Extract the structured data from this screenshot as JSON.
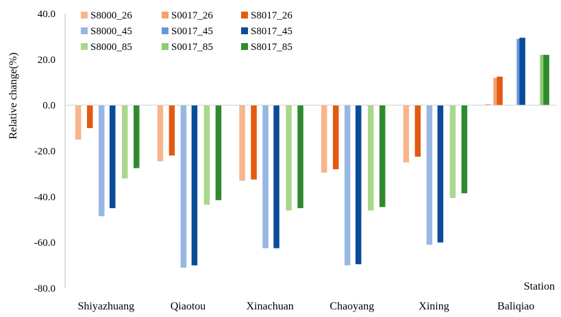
{
  "chart_data": {
    "type": "bar",
    "title": "",
    "xlabel": "Station",
    "ylabel": "Relative change(%)",
    "ylim": [
      -80,
      40
    ],
    "yticks": [
      40,
      20,
      0,
      -20,
      -40,
      -60,
      -80
    ],
    "ytick_labels": [
      "40.0",
      "20.0",
      "0.0",
      "-20.0",
      "-40.0",
      "-60.0",
      "-80.0"
    ],
    "grid": false,
    "legend_position": "top-left",
    "categories": [
      "Shiyazhuang",
      "Qiaotou",
      "Xinachuan",
      "Chaoyang",
      "Xining",
      "Baliqiao"
    ],
    "series": [
      {
        "name": "S8000_26",
        "color": "#F8B58B",
        "values": [
          -15.0,
          -24.5,
          -33.0,
          -29.5,
          -25.0,
          0.5
        ]
      },
      {
        "name": "S0017_26",
        "color": "#F4A070",
        "values": [
          null,
          null,
          null,
          null,
          null,
          12.0
        ]
      },
      {
        "name": "S8017_26",
        "color": "#E35A12",
        "values": [
          -10.0,
          -22.0,
          -32.5,
          -28.0,
          -22.5,
          12.5
        ]
      },
      {
        "name": "S8000_45",
        "color": "#98B7E2",
        "values": [
          -48.5,
          -71.0,
          -62.5,
          -70.0,
          -61.0,
          null
        ]
      },
      {
        "name": "S0017_45",
        "color": "#6A97D8",
        "values": [
          null,
          null,
          null,
          null,
          null,
          29.0
        ]
      },
      {
        "name": "S8017_45",
        "color": "#0A4C9A",
        "values": [
          -45.0,
          -70.0,
          -62.5,
          -69.5,
          -60.0,
          29.5
        ]
      },
      {
        "name": "S8000_85",
        "color": "#A8D88C",
        "values": [
          -32.0,
          -43.5,
          -46.0,
          -46.0,
          -40.5,
          null
        ]
      },
      {
        "name": "S0017_85",
        "color": "#8DCB72",
        "values": [
          null,
          null,
          null,
          null,
          null,
          22.0
        ]
      },
      {
        "name": "S8017_85",
        "color": "#2F8A2E",
        "values": [
          -27.5,
          -41.5,
          -45.0,
          -44.5,
          -38.5,
          22.0
        ]
      }
    ]
  }
}
